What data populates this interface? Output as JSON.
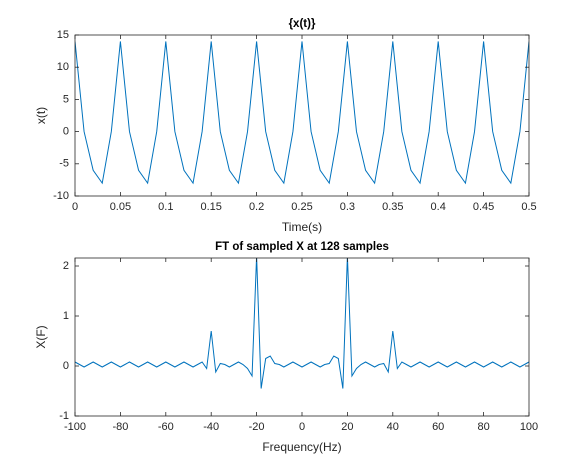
{
  "chart_data": [
    {
      "type": "line",
      "title": "{x(t)}",
      "xlabel": "Time(s)",
      "ylabel": "x(t)",
      "x": [
        0,
        0.01,
        0.02,
        0.03,
        0.04,
        0.05,
        0.06,
        0.07,
        0.08,
        0.09,
        0.1,
        0.11,
        0.12,
        0.13,
        0.14,
        0.15,
        0.16,
        0.17,
        0.18,
        0.19,
        0.2,
        0.21,
        0.22,
        0.23,
        0.24,
        0.25,
        0.26,
        0.27,
        0.28,
        0.29,
        0.3,
        0.31,
        0.32,
        0.33,
        0.34,
        0.35,
        0.36,
        0.37,
        0.38,
        0.39,
        0.4,
        0.41,
        0.42,
        0.43,
        0.44,
        0.45,
        0.46,
        0.47,
        0.48,
        0.49,
        0.5
      ],
      "series": [
        {
          "color": "#0072bd",
          "values": [
            14,
            0,
            -6,
            -8,
            0,
            14,
            0,
            -6,
            -8,
            0,
            14,
            0,
            -6,
            -8,
            0,
            14,
            0,
            -6,
            -8,
            0,
            14,
            0,
            -6,
            -8,
            0,
            14,
            0,
            -6,
            -8,
            0,
            14,
            0,
            -6,
            -8,
            0,
            14,
            0,
            -6,
            -8,
            0,
            14,
            0,
            -6,
            -8,
            0,
            14,
            0,
            -6,
            -8,
            0,
            14
          ]
        }
      ],
      "xlim": [
        0,
        0.5
      ],
      "xticks": [
        0,
        0.05,
        0.1,
        0.15,
        0.2,
        0.25,
        0.3,
        0.35,
        0.4,
        0.45,
        0.5
      ],
      "ylim": [
        -10,
        15
      ],
      "yticks": [
        -10,
        -5,
        0,
        5,
        10,
        15
      ]
    },
    {
      "type": "line",
      "title": "FT of sampled X at 128 samples",
      "xlabel": "Frequency(Hz)",
      "ylabel": "X(F)",
      "x": [
        -100,
        -98,
        -96,
        -94,
        -92,
        -90,
        -88,
        -86,
        -84,
        -82,
        -80,
        -78,
        -76,
        -74,
        -72,
        -70,
        -68,
        -66,
        -64,
        -62,
        -60,
        -58,
        -56,
        -54,
        -52,
        -50,
        -48,
        -46,
        -44,
        -42,
        -40,
        -38,
        -36,
        -34,
        -32,
        -30,
        -28,
        -26,
        -24,
        -22,
        -20,
        -18,
        -16,
        -14,
        -12,
        -10,
        -8,
        -6,
        -4,
        -2,
        0,
        2,
        4,
        6,
        8,
        10,
        12,
        14,
        16,
        18,
        20,
        22,
        24,
        26,
        28,
        30,
        32,
        34,
        36,
        38,
        40,
        42,
        44,
        46,
        48,
        50,
        52,
        54,
        56,
        58,
        60,
        62,
        64,
        66,
        68,
        70,
        72,
        74,
        76,
        78,
        80,
        82,
        84,
        86,
        88,
        90,
        92,
        94,
        96,
        98,
        100
      ],
      "series": [
        {
          "color": "#0072bd",
          "values": [
            0.08,
            0.03,
            -0.02,
            0.03,
            0.08,
            0.03,
            -0.02,
            0.03,
            0.08,
            0.03,
            -0.02,
            0.03,
            0.08,
            0.03,
            -0.02,
            0.03,
            0.08,
            0.03,
            -0.02,
            0.03,
            0.08,
            0.03,
            -0.02,
            0.03,
            0.08,
            0.03,
            -0.02,
            0.03,
            0.08,
            -0.05,
            0.7,
            -0.12,
            0.05,
            0.03,
            -0.02,
            0.03,
            0.08,
            0.03,
            -0.05,
            -0.2,
            2.2,
            -0.45,
            0.15,
            0.2,
            0.05,
            0.03,
            -0.02,
            0.03,
            0.08,
            0.03,
            -0.02,
            0.03,
            0.08,
            0.03,
            -0.02,
            0.03,
            0.05,
            0.2,
            0.15,
            -0.45,
            2.2,
            -0.2,
            -0.05,
            0.03,
            0.08,
            0.03,
            -0.02,
            0.03,
            0.05,
            -0.12,
            0.7,
            -0.05,
            0.08,
            0.03,
            -0.02,
            0.03,
            0.08,
            0.03,
            -0.02,
            0.03,
            0.08,
            0.03,
            -0.02,
            0.03,
            0.08,
            0.03,
            -0.02,
            0.03,
            0.08,
            0.03,
            -0.02,
            0.03,
            0.08,
            0.03,
            -0.02,
            0.03,
            0.08,
            0.03,
            -0.02,
            0.03,
            0.08
          ]
        }
      ],
      "xlim": [
        -100,
        100
      ],
      "xticks": [
        -100,
        -80,
        -60,
        -40,
        -20,
        0,
        20,
        40,
        60,
        80,
        100
      ],
      "ylim": [
        -1,
        2.16
      ],
      "yticks": [
        -1,
        0,
        1,
        2
      ]
    }
  ]
}
